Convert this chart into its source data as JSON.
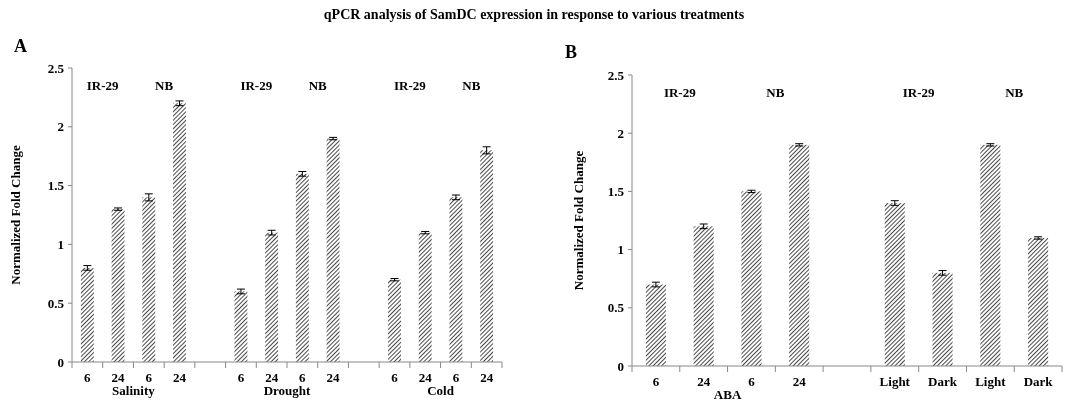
{
  "chart_data": [
    {
      "type": "bar",
      "title": "qPCR analysis of SamDC expression in response to various treatments",
      "ylabel": "Normalized Fold Change",
      "categories": [
        "6",
        "24",
        "6",
        "24",
        null,
        "6",
        "24",
        "6",
        "24",
        null,
        "6",
        "24",
        "6",
        "24"
      ],
      "values": [
        0.8,
        1.3,
        1.4,
        2.2,
        null,
        0.6,
        1.1,
        1.6,
        1.9,
        null,
        0.7,
        1.1,
        1.4,
        1.8
      ],
      "errors": [
        0.02,
        0.01,
        0.03,
        0.02,
        null,
        0.02,
        0.02,
        0.02,
        0.01,
        null,
        0.01,
        0.01,
        0.02,
        0.03
      ],
      "color": "#333333",
      "ylim": [
        0,
        2.5
      ],
      "yticks": [
        0,
        0.5,
        1,
        1.5,
        2,
        2.5
      ],
      "grid": false,
      "annotations": [
        "A",
        "IR-29",
        "NB",
        "IR-29",
        "NB",
        "IR-29",
        "NB",
        "Salinity",
        "Drought",
        "Cold"
      ]
    },
    {
      "type": "bar",
      "ylabel": "Normalized Fold Change",
      "categories": [
        "6",
        "24",
        "6",
        "24",
        null,
        "Light",
        "Dark",
        "Light",
        "Dark"
      ],
      "values": [
        0.7,
        1.2,
        1.5,
        1.9,
        null,
        1.4,
        0.8,
        1.9,
        1.1
      ],
      "errors": [
        0.02,
        0.02,
        0.01,
        0.01,
        null,
        0.02,
        0.02,
        0.01,
        0.01
      ],
      "color": "#333333",
      "ylim": [
        0,
        2.5
      ],
      "yticks": [
        0,
        0.5,
        1,
        1.5,
        2,
        2.5
      ],
      "grid": false,
      "annotations": [
        "B",
        "IR-29",
        "NB",
        "IR-29",
        "NB",
        "ABA"
      ]
    }
  ]
}
